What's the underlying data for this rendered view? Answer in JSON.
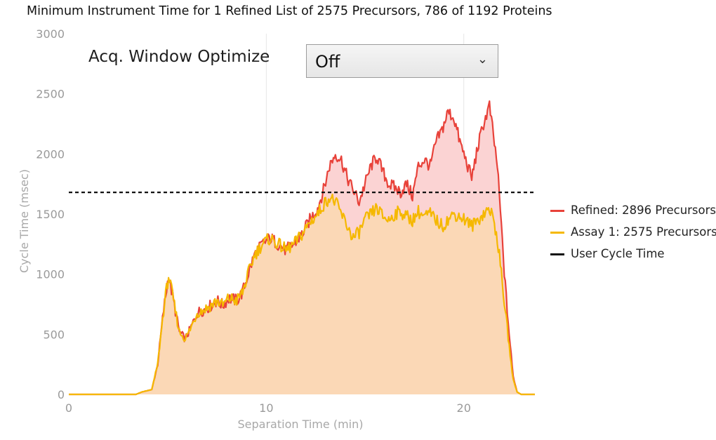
{
  "title": "Minimum Instrument Time for 1 Refined List of 2575 Precursors, 786 of 1192 Proteins",
  "control": {
    "label": "Acq. Window Optimize",
    "value": "Off"
  },
  "chart_data": {
    "type": "area",
    "xlabel": "Separation Time (min)",
    "ylabel": "Cycle Time (msec)",
    "xlim": [
      0,
      23.6
    ],
    "ylim": [
      0,
      3000
    ],
    "x_ticks": [
      0,
      10,
      20
    ],
    "y_ticks": [
      0,
      500,
      1000,
      1500,
      2000,
      2500,
      3000
    ],
    "grid": "vertical",
    "legend_position": "right",
    "user_cycle_time": 1680,
    "series": [
      {
        "name": "Refined: 2896 Precursors",
        "color": "#e8423a",
        "fill": "#fbd3d3",
        "points": [
          [
            0,
            0
          ],
          [
            3.4,
            0
          ],
          [
            3.7,
            20
          ],
          [
            4.2,
            40
          ],
          [
            4.5,
            250
          ],
          [
            4.8,
            700
          ],
          [
            5.05,
            990
          ],
          [
            5.3,
            780
          ],
          [
            5.6,
            520
          ],
          [
            5.9,
            460
          ],
          [
            6.2,
            560
          ],
          [
            6.5,
            680
          ],
          [
            6.8,
            700
          ],
          [
            7.2,
            740
          ],
          [
            7.5,
            780
          ],
          [
            7.8,
            740
          ],
          [
            8.1,
            800
          ],
          [
            8.5,
            780
          ],
          [
            8.8,
            850
          ],
          [
            9.1,
            1010
          ],
          [
            9.4,
            1160
          ],
          [
            9.8,
            1250
          ],
          [
            10.2,
            1300
          ],
          [
            10.6,
            1250
          ],
          [
            11.0,
            1200
          ],
          [
            11.4,
            1250
          ],
          [
            11.8,
            1330
          ],
          [
            12.2,
            1450
          ],
          [
            12.6,
            1550
          ],
          [
            12.9,
            1700
          ],
          [
            13.2,
            1900
          ],
          [
            13.5,
            2000
          ],
          [
            13.8,
            1950
          ],
          [
            14.1,
            1800
          ],
          [
            14.4,
            1700
          ],
          [
            14.7,
            1600
          ],
          [
            15.0,
            1750
          ],
          [
            15.3,
            1900
          ],
          [
            15.6,
            1980
          ],
          [
            15.9,
            1850
          ],
          [
            16.2,
            1750
          ],
          [
            16.5,
            1720
          ],
          [
            16.8,
            1680
          ],
          [
            17.1,
            1750
          ],
          [
            17.4,
            1650
          ],
          [
            17.7,
            1900
          ],
          [
            18.0,
            1950
          ],
          [
            18.3,
            1900
          ],
          [
            18.6,
            2100
          ],
          [
            18.9,
            2200
          ],
          [
            19.2,
            2350
          ],
          [
            19.5,
            2300
          ],
          [
            19.8,
            2100
          ],
          [
            20.1,
            1950
          ],
          [
            20.4,
            1800
          ],
          [
            20.7,
            2050
          ],
          [
            21.0,
            2250
          ],
          [
            21.3,
            2400
          ],
          [
            21.5,
            2150
          ],
          [
            21.7,
            1900
          ],
          [
            21.9,
            1400
          ],
          [
            22.1,
            900
          ],
          [
            22.3,
            500
          ],
          [
            22.5,
            150
          ],
          [
            22.7,
            20
          ],
          [
            22.9,
            0
          ],
          [
            23.6,
            0
          ]
        ]
      },
      {
        "name": "Assay 1: 2575 Precursors",
        "color": "#f5b800",
        "fill": "#fbd8b6",
        "points": [
          [
            0,
            0
          ],
          [
            3.4,
            0
          ],
          [
            3.7,
            20
          ],
          [
            4.2,
            40
          ],
          [
            4.5,
            250
          ],
          [
            4.8,
            700
          ],
          [
            5.05,
            990
          ],
          [
            5.3,
            780
          ],
          [
            5.6,
            520
          ],
          [
            5.9,
            460
          ],
          [
            6.2,
            560
          ],
          [
            6.5,
            680
          ],
          [
            6.8,
            700
          ],
          [
            7.2,
            740
          ],
          [
            7.5,
            780
          ],
          [
            7.8,
            740
          ],
          [
            8.1,
            800
          ],
          [
            8.5,
            780
          ],
          [
            8.8,
            850
          ],
          [
            9.1,
            1010
          ],
          [
            9.4,
            1160
          ],
          [
            9.8,
            1250
          ],
          [
            10.2,
            1300
          ],
          [
            10.6,
            1250
          ],
          [
            11.0,
            1200
          ],
          [
            11.4,
            1250
          ],
          [
            11.8,
            1330
          ],
          [
            12.2,
            1430
          ],
          [
            12.6,
            1500
          ],
          [
            12.9,
            1580
          ],
          [
            13.2,
            1640
          ],
          [
            13.5,
            1600
          ],
          [
            13.8,
            1500
          ],
          [
            14.1,
            1400
          ],
          [
            14.4,
            1300
          ],
          [
            14.7,
            1350
          ],
          [
            15.0,
            1450
          ],
          [
            15.3,
            1500
          ],
          [
            15.6,
            1550
          ],
          [
            15.9,
            1480
          ],
          [
            16.2,
            1450
          ],
          [
            16.5,
            1500
          ],
          [
            16.8,
            1520
          ],
          [
            17.1,
            1480
          ],
          [
            17.4,
            1450
          ],
          [
            17.7,
            1520
          ],
          [
            18.0,
            1480
          ],
          [
            18.3,
            1500
          ],
          [
            18.6,
            1450
          ],
          [
            18.9,
            1400
          ],
          [
            19.2,
            1450
          ],
          [
            19.5,
            1500
          ],
          [
            19.8,
            1480
          ],
          [
            20.1,
            1450
          ],
          [
            20.4,
            1400
          ],
          [
            20.7,
            1450
          ],
          [
            21.0,
            1500
          ],
          [
            21.3,
            1550
          ],
          [
            21.5,
            1450
          ],
          [
            21.7,
            1300
          ],
          [
            21.9,
            1000
          ],
          [
            22.1,
            700
          ],
          [
            22.3,
            400
          ],
          [
            22.5,
            120
          ],
          [
            22.7,
            20
          ],
          [
            22.9,
            0
          ],
          [
            23.6,
            0
          ]
        ]
      },
      {
        "name": "User Cycle Time",
        "color": "#111111",
        "style": "dashed"
      }
    ]
  }
}
